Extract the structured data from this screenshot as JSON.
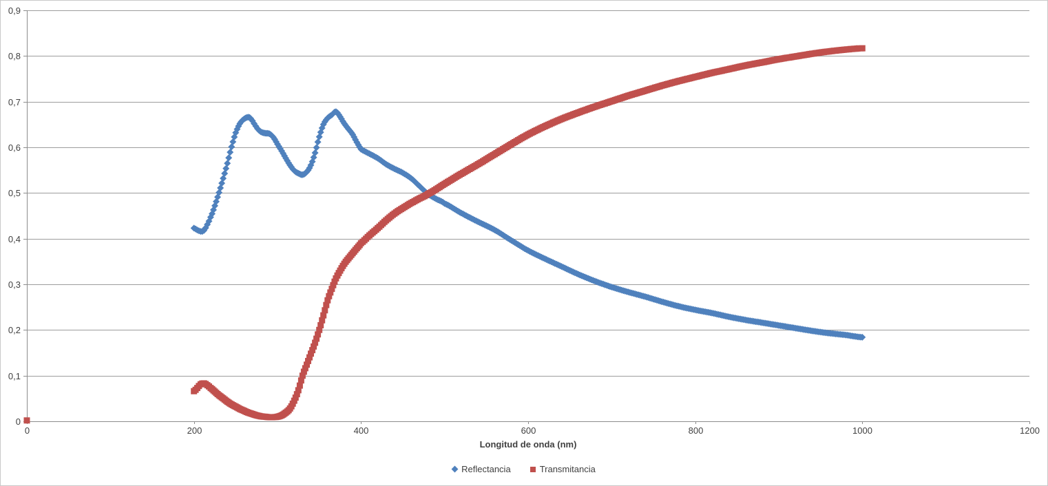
{
  "chart_data": {
    "type": "scatter",
    "title": "",
    "xlabel": "Longitud de onda (nm)",
    "ylabel": "",
    "xlim": [
      0,
      1200
    ],
    "ylim": [
      0,
      0.9
    ],
    "x_tick_step": 200,
    "y_tick_step": 0.1,
    "x_tick_labels": [
      "0",
      "200",
      "400",
      "600",
      "800",
      "1000",
      "1200"
    ],
    "y_tick_labels": [
      "0",
      "0,1",
      "0,2",
      "0,3",
      "0,4",
      "0,5",
      "0,6",
      "0,7",
      "0,8",
      "0,9"
    ],
    "grid": "horizontal",
    "legend_position": "bottom-center",
    "decimal_separator": ",",
    "series": [
      {
        "name": "Reflectancia",
        "marker": "diamond",
        "color": "#4F81BD",
        "points": [
          [
            200,
            0.423
          ],
          [
            204,
            0.419
          ],
          [
            208,
            0.416
          ],
          [
            212,
            0.418
          ],
          [
            216,
            0.431
          ],
          [
            220,
            0.447
          ],
          [
            225,
            0.472
          ],
          [
            230,
            0.501
          ],
          [
            235,
            0.532
          ],
          [
            240,
            0.565
          ],
          [
            245,
            0.601
          ],
          [
            250,
            0.632
          ],
          [
            255,
            0.652
          ],
          [
            260,
            0.662
          ],
          [
            265,
            0.666
          ],
          [
            268,
            0.663
          ],
          [
            272,
            0.652
          ],
          [
            276,
            0.641
          ],
          [
            280,
            0.634
          ],
          [
            285,
            0.631
          ],
          [
            290,
            0.63
          ],
          [
            295,
            0.622
          ],
          [
            300,
            0.607
          ],
          [
            305,
            0.592
          ],
          [
            310,
            0.576
          ],
          [
            315,
            0.561
          ],
          [
            320,
            0.549
          ],
          [
            325,
            0.543
          ],
          [
            330,
            0.54
          ],
          [
            335,
            0.546
          ],
          [
            340,
            0.561
          ],
          [
            345,
            0.588
          ],
          [
            350,
            0.623
          ],
          [
            355,
            0.65
          ],
          [
            360,
            0.664
          ],
          [
            365,
            0.671
          ],
          [
            370,
            0.678
          ],
          [
            375,
            0.667
          ],
          [
            380,
            0.652
          ],
          [
            385,
            0.64
          ],
          [
            390,
            0.628
          ],
          [
            395,
            0.611
          ],
          [
            400,
            0.596
          ],
          [
            410,
            0.586
          ],
          [
            420,
            0.576
          ],
          [
            430,
            0.563
          ],
          [
            440,
            0.553
          ],
          [
            450,
            0.544
          ],
          [
            460,
            0.532
          ],
          [
            470,
            0.515
          ],
          [
            480,
            0.498
          ],
          [
            490,
            0.487
          ],
          [
            500,
            0.477
          ],
          [
            520,
            0.456
          ],
          [
            540,
            0.437
          ],
          [
            560,
            0.419
          ],
          [
            580,
            0.396
          ],
          [
            600,
            0.374
          ],
          [
            620,
            0.356
          ],
          [
            640,
            0.339
          ],
          [
            660,
            0.322
          ],
          [
            680,
            0.307
          ],
          [
            700,
            0.294
          ],
          [
            720,
            0.283
          ],
          [
            740,
            0.273
          ],
          [
            760,
            0.262
          ],
          [
            780,
            0.252
          ],
          [
            800,
            0.244
          ],
          [
            820,
            0.237
          ],
          [
            840,
            0.229
          ],
          [
            860,
            0.222
          ],
          [
            880,
            0.216
          ],
          [
            900,
            0.21
          ],
          [
            920,
            0.204
          ],
          [
            940,
            0.198
          ],
          [
            960,
            0.193
          ],
          [
            980,
            0.189
          ],
          [
            1000,
            0.184
          ]
        ]
      },
      {
        "name": "Transmitancia",
        "marker": "square",
        "color": "#C0504D",
        "points": [
          [
            0,
            0.002
          ],
          [
            200,
            0.066
          ],
          [
            204,
            0.073
          ],
          [
            208,
            0.081
          ],
          [
            212,
            0.083
          ],
          [
            216,
            0.079
          ],
          [
            220,
            0.073
          ],
          [
            225,
            0.065
          ],
          [
            230,
            0.057
          ],
          [
            235,
            0.05
          ],
          [
            240,
            0.043
          ],
          [
            245,
            0.037
          ],
          [
            250,
            0.032
          ],
          [
            255,
            0.027
          ],
          [
            260,
            0.023
          ],
          [
            265,
            0.019
          ],
          [
            270,
            0.016
          ],
          [
            275,
            0.013
          ],
          [
            280,
            0.011
          ],
          [
            285,
            0.01
          ],
          [
            290,
            0.009
          ],
          [
            295,
            0.009
          ],
          [
            300,
            0.01
          ],
          [
            305,
            0.013
          ],
          [
            310,
            0.019
          ],
          [
            315,
            0.028
          ],
          [
            320,
            0.045
          ],
          [
            325,
            0.068
          ],
          [
            330,
            0.1
          ],
          [
            335,
            0.124
          ],
          [
            340,
            0.148
          ],
          [
            345,
            0.172
          ],
          [
            350,
            0.2
          ],
          [
            355,
            0.232
          ],
          [
            360,
            0.265
          ],
          [
            365,
            0.29
          ],
          [
            370,
            0.313
          ],
          [
            375,
            0.33
          ],
          [
            380,
            0.345
          ],
          [
            385,
            0.357
          ],
          [
            390,
            0.368
          ],
          [
            395,
            0.379
          ],
          [
            400,
            0.39
          ],
          [
            410,
            0.407
          ],
          [
            420,
            0.423
          ],
          [
            430,
            0.44
          ],
          [
            440,
            0.455
          ],
          [
            450,
            0.467
          ],
          [
            460,
            0.478
          ],
          [
            470,
            0.488
          ],
          [
            480,
            0.498
          ],
          [
            500,
            0.52
          ],
          [
            520,
            0.542
          ],
          [
            540,
            0.563
          ],
          [
            560,
            0.585
          ],
          [
            580,
            0.607
          ],
          [
            600,
            0.628
          ],
          [
            620,
            0.646
          ],
          [
            640,
            0.662
          ],
          [
            660,
            0.676
          ],
          [
            680,
            0.689
          ],
          [
            700,
            0.701
          ],
          [
            720,
            0.713
          ],
          [
            740,
            0.724
          ],
          [
            760,
            0.735
          ],
          [
            780,
            0.745
          ],
          [
            800,
            0.754
          ],
          [
            820,
            0.763
          ],
          [
            840,
            0.771
          ],
          [
            860,
            0.779
          ],
          [
            880,
            0.786
          ],
          [
            900,
            0.793
          ],
          [
            920,
            0.799
          ],
          [
            940,
            0.805
          ],
          [
            960,
            0.81
          ],
          [
            980,
            0.814
          ],
          [
            1000,
            0.817
          ]
        ]
      }
    ]
  },
  "colors": {
    "background": "#FFFFFF",
    "border": "#C9C9C9",
    "gridline": "#9C9C9C",
    "axis": "#8C8C8C",
    "text": "#404040"
  }
}
